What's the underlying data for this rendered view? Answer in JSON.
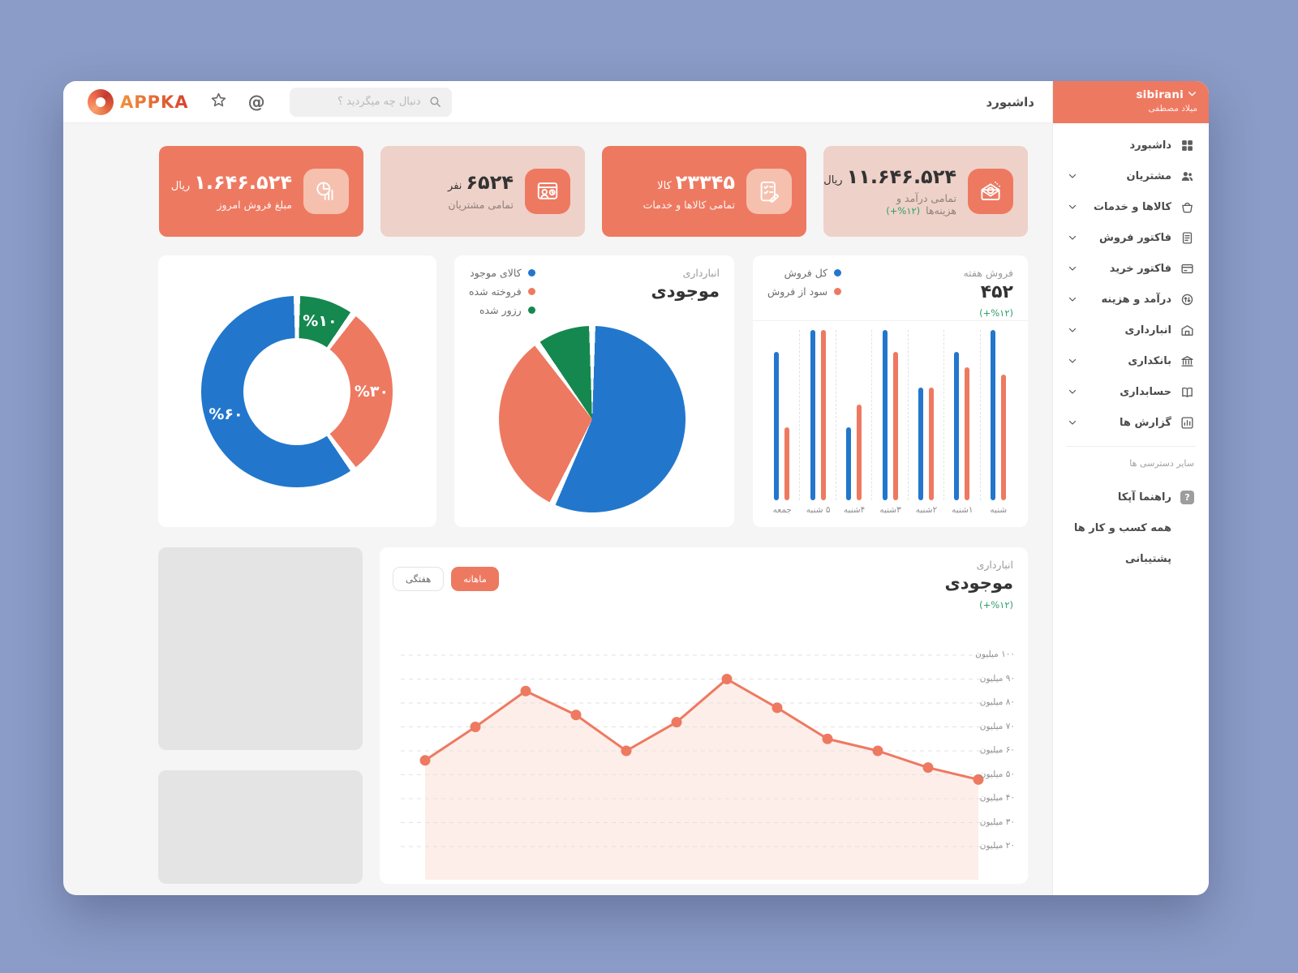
{
  "app": {
    "name": "APPKA"
  },
  "header": {
    "search_placeholder": "دنبال چه میگردید ؟",
    "page_title": "داشبورد"
  },
  "user": {
    "username": "sibirani",
    "fullname": "میلاد مصطفی"
  },
  "sidebar": {
    "items": [
      {
        "id": "dashboard",
        "label": "داشبورد",
        "icon": "dashboard-icon",
        "expandable": false
      },
      {
        "id": "customers",
        "label": "مشتریان",
        "icon": "customers-icon",
        "expandable": true
      },
      {
        "id": "products-services",
        "label": "کالاها و خدمات",
        "icon": "products-icon",
        "expandable": true
      },
      {
        "id": "sales-invoice",
        "label": "فاکتور فروش",
        "icon": "sales-invoice-icon",
        "expandable": true
      },
      {
        "id": "purchase-invoice",
        "label": "فاکتور خرید",
        "icon": "purchase-invoice-icon",
        "expandable": true
      },
      {
        "id": "income-expense",
        "label": "درآمد و هزینه",
        "icon": "income-expense-icon",
        "expandable": true
      },
      {
        "id": "warehouse",
        "label": "انبارداری",
        "icon": "warehouse-icon",
        "expandable": true
      },
      {
        "id": "banking",
        "label": "بانکداری",
        "icon": "banking-icon",
        "expandable": true
      },
      {
        "id": "accounting",
        "label": "حسابداری",
        "icon": "accounting-icon",
        "expandable": true
      },
      {
        "id": "reports",
        "label": "گزارش ها",
        "icon": "reports-icon",
        "expandable": true
      }
    ],
    "section_label": "سایر دسترسی ها",
    "secondary_items": [
      {
        "id": "appka-guide",
        "label": "راهنما آپکا",
        "icon": "help-icon"
      },
      {
        "id": "all-businesses",
        "label": "همه کسب و کار ها",
        "icon": ""
      },
      {
        "id": "support",
        "label": "پشتیبانی",
        "icon": ""
      }
    ]
  },
  "stat_cards": [
    {
      "value": "۱۱.۶۴۶.۵۲۴",
      "unit": "ریال",
      "label": "تمامی درآمد و هزینه‌ها",
      "delta": "(+%۱۲)",
      "style": "light",
      "icon": "income-envelope-icon"
    },
    {
      "value": "۲۳۳۴۵",
      "unit": "کالا",
      "label": "تمامی کالاها و خدمات",
      "delta": "",
      "style": "solid",
      "icon": "products-checklist-icon"
    },
    {
      "value": "۶۵۲۴",
      "unit": "نفر",
      "label": "تمامی مشتریان",
      "delta": "",
      "style": "light",
      "icon": "customers-person-icon"
    },
    {
      "value": "۱.۶۴۶.۵۲۴",
      "unit": "ریال",
      "label": "مبلغ فروش امروز",
      "delta": "",
      "style": "solid",
      "icon": "sales-piechart-icon"
    }
  ],
  "colors": {
    "orange": "#ee7961",
    "blue": "#2277cd",
    "green": "#15884f",
    "green_text": "#2f9e6b",
    "card_pink": "#eed1c9",
    "line_fill": "#fdeee9",
    "page_bg": "#8b9cc8"
  },
  "chart_data": [
    {
      "id": "inventory_donut",
      "type": "pie",
      "donut": true,
      "start": "top-clockwise",
      "slices": [
        {
          "label": "%۱۰",
          "value": 10,
          "color": "#15884f"
        },
        {
          "label": "%۳۰",
          "value": 30,
          "color": "#ee7961"
        },
        {
          "label": "%۶۰",
          "value": 60,
          "color": "#2277cd"
        }
      ]
    },
    {
      "id": "inventory_pie",
      "type": "pie",
      "subtitle": "انبارداری",
      "title": "موجودی",
      "start": "top-clockwise",
      "slices": [
        {
          "label": "کالای موجود",
          "value": 57,
          "color": "#2277cd"
        },
        {
          "label": "فروخته شده",
          "value": 33,
          "color": "#ee7961"
        },
        {
          "label": "رزور شده",
          "value": 10,
          "color": "#15884f"
        }
      ],
      "legend": [
        {
          "label": "کالای موجود",
          "color": "#2277cd"
        },
        {
          "label": "فروخته شده",
          "color": "#ee7961"
        },
        {
          "label": "رزور شده",
          "color": "#15884f"
        }
      ]
    },
    {
      "id": "week_sales",
      "type": "bar",
      "subtitle": "فروش هفته",
      "total": "۴۵۲",
      "delta": "(+%۱۲)",
      "categories_rtl_first": [
        "شنبه",
        "۱شنبه",
        "۲شنبه",
        "۳شنبه",
        "۴شنبه",
        "۵ شنبه",
        "جمعه"
      ],
      "series": [
        {
          "name": "کل فروش",
          "color": "#2277cd",
          "values": [
            100,
            87,
            66,
            100,
            43,
            100,
            87
          ]
        },
        {
          "name": "سود از فروش",
          "color": "#ee7961",
          "values": [
            74,
            78,
            66,
            87,
            56,
            100,
            43
          ]
        }
      ],
      "ylim": [
        0,
        100
      ],
      "grid": "dashed-vertical"
    },
    {
      "id": "inventory_line",
      "type": "line",
      "subtitle": "انبارداری",
      "title": "موجودی",
      "delta": "(+%۱۲)",
      "period_buttons": [
        {
          "label": "ماهانه",
          "active": true
        },
        {
          "label": "هفتگی",
          "active": false
        }
      ],
      "y_ticks": [
        "۱۰۰ میلیون",
        "۹۰ میلیون",
        "۸۰ میلیون",
        "۷۰ میلیون",
        "۶۰ میلیون",
        "۵۰ میلیون",
        "۴۰ میلیون",
        "۳۰ میلیون",
        "۲۰ میلیون"
      ],
      "y_range_millions": [
        20,
        100
      ],
      "values_millions_rtl_first": [
        48,
        53,
        60,
        65,
        78,
        90,
        72,
        60,
        75,
        85,
        70,
        56
      ],
      "color": "#ee7961",
      "fill": "#fdeee9",
      "grid": "dashed-horizontal"
    }
  ]
}
